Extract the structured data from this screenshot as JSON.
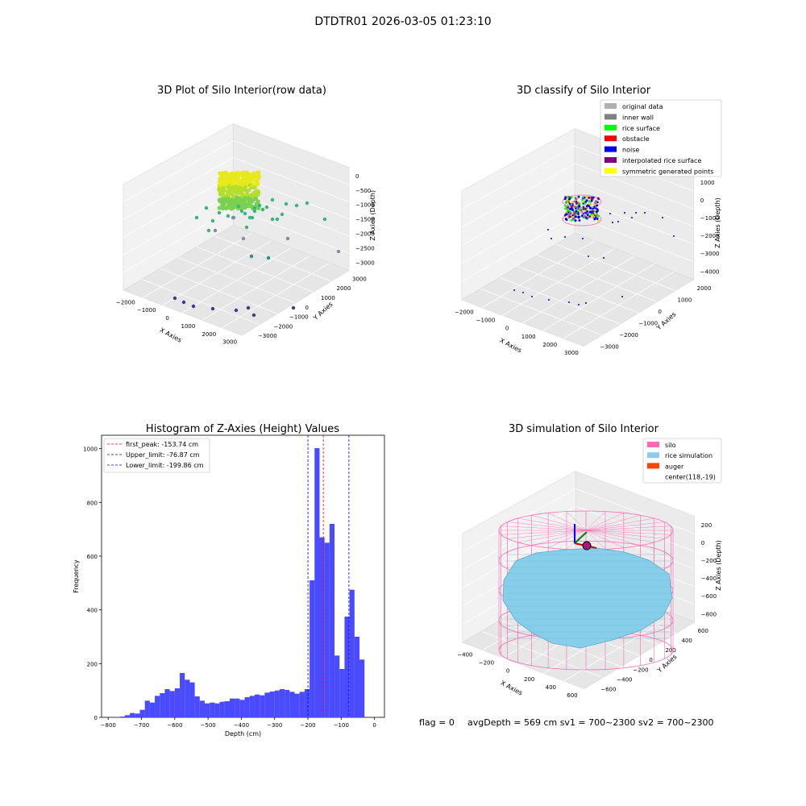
{
  "suptitle": "DTDTR01 2026-03-05 01:23:10",
  "footer": {
    "flag": "flag = 0",
    "stats": "avgDepth = 569 cm  sv1 = 700~2300  sv2 = 700~2300"
  },
  "colors": {
    "hist_bar": "#4a4aff",
    "peak_line": "#ff0000",
    "limit_line": "#0000ff",
    "silo": "#ff69b4",
    "rice_sim": "#87ceeb",
    "auger": "#ff4500"
  },
  "chart_data": [
    {
      "type": "scatter",
      "projection": "3d",
      "title": "3D Plot of Silo Interior(row data)",
      "xlabel": "X Axies",
      "ylabel": "Y Axies",
      "zlabel": "Z Axies (Depth)",
      "x_ticks": [
        "−2000",
        "−1000",
        "0",
        "1000",
        "2000",
        "3000"
      ],
      "y_ticks": [
        "3000",
        "2000",
        "1000",
        "0",
        "−1000",
        "−2000",
        "−3000"
      ],
      "z_ticks": [
        "0",
        "−500",
        "−1000",
        "−1500",
        "−2000",
        "−2500",
        "−3000"
      ],
      "grid": true
    },
    {
      "type": "scatter",
      "projection": "3d",
      "title": "3D classify of Silo Interior",
      "xlabel": "X Axies",
      "ylabel": "Y Axies",
      "zlabel": "Z Axies (Depth)",
      "x_ticks": [
        "−2000",
        "−1000",
        "0",
        "1000",
        "2000",
        "3000"
      ],
      "y_ticks": [
        "2000",
        "1000",
        "0",
        "−1000",
        "−2000",
        "−3000"
      ],
      "z_ticks": [
        "1000",
        "0",
        "−1000",
        "−2000",
        "−3000",
        "−4000"
      ],
      "legend": {
        "placement": "top-right",
        "items": [
          {
            "label": "original data",
            "color": "#b0b0b0"
          },
          {
            "label": "inner wall",
            "color": "#808080"
          },
          {
            "label": "rice surface",
            "color": "#00ff00"
          },
          {
            "label": "obstacle",
            "color": "#ff0000"
          },
          {
            "label": "noise",
            "color": "#0000ff"
          },
          {
            "label": "interpolated rice surface",
            "color": "#800080"
          },
          {
            "label": "symmetric generated points",
            "color": "#ffff00"
          }
        ]
      },
      "grid": true
    },
    {
      "type": "bar",
      "title": "Histogram of Z-Axies (Height) Values",
      "xlabel": "Depth (cm)",
      "ylabel": "Frequency",
      "xlim": [
        -820,
        30
      ],
      "ylim": [
        0,
        1050
      ],
      "x_ticks": [
        -800,
        -700,
        -600,
        -500,
        -400,
        -300,
        -200,
        -100,
        0
      ],
      "y_ticks": [
        0,
        200,
        400,
        600,
        800,
        1000
      ],
      "bin_width": 15,
      "bin_start": -780,
      "values": [
        1,
        3,
        8,
        16,
        14,
        28,
        62,
        55,
        80,
        90,
        105,
        98,
        108,
        165,
        140,
        130,
        78,
        62,
        52,
        55,
        52,
        58,
        60,
        70,
        70,
        65,
        75,
        80,
        85,
        82,
        92,
        96,
        100,
        105,
        102,
        95,
        88,
        95,
        105,
        510,
        1002,
        670,
        650,
        720,
        230,
        180,
        375,
        475,
        300,
        215
      ],
      "vlines": [
        {
          "label": "first_peak: -153.74 cm",
          "x": -153.74,
          "color": "#ff0000"
        },
        {
          "label": "Upper_limit: -76.87 cm",
          "x": -76.87,
          "color": "#0000ff"
        },
        {
          "label": "Lower_limit: -199.86 cm",
          "x": -199.86,
          "color": "#0000ff"
        }
      ],
      "legend": {
        "placement": "top-left"
      }
    },
    {
      "type": "surface",
      "projection": "3d",
      "title": "3D simulation of Silo Interior",
      "xlabel": "X Axies",
      "ylabel": "Y Axies",
      "zlabel": "Z Axies (Depth)",
      "x_ticks": [
        "−400",
        "−200",
        "0",
        "200",
        "400",
        "600"
      ],
      "y_ticks": [
        "600",
        "400",
        "200",
        "0",
        "−200",
        "−400",
        "−600"
      ],
      "z_ticks": [
        "200",
        "0",
        "−200",
        "−400",
        "−600",
        "−800"
      ],
      "legend": {
        "placement": "top-right",
        "items": [
          {
            "label": "silo",
            "color": "#ff69b4"
          },
          {
            "label": "rice simulation",
            "color": "#87ceeb"
          },
          {
            "label": "auger",
            "color": "#ff4500"
          },
          {
            "label": "center(118,-19)",
            "color": ""
          }
        ]
      },
      "grid": true
    }
  ]
}
